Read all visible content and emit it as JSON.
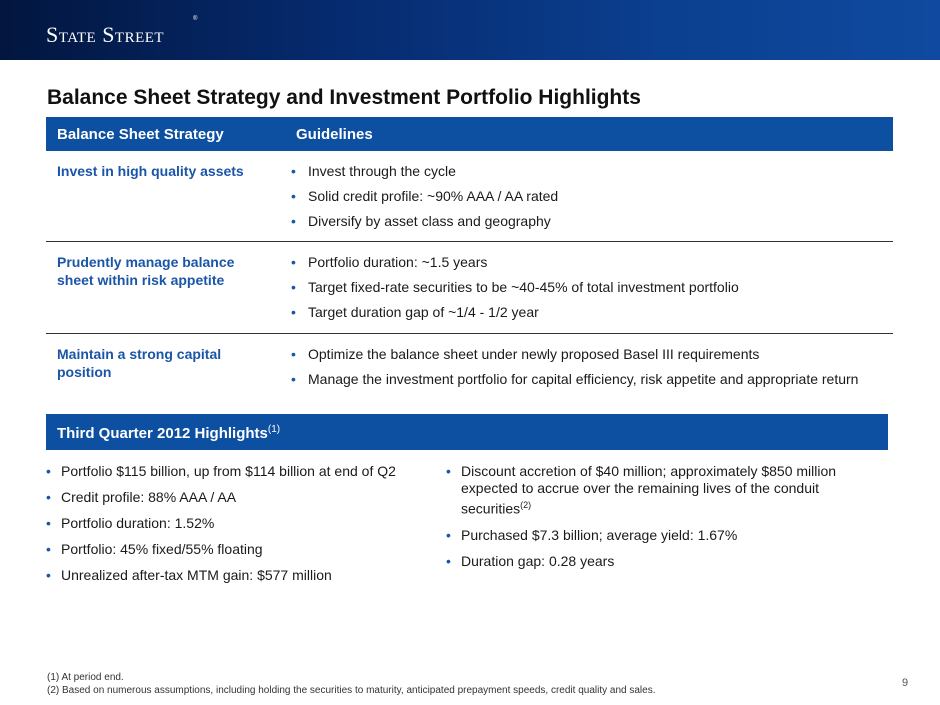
{
  "header": {
    "logo_text": "State Street",
    "logo_mark": "®"
  },
  "page_title": "Balance Sheet Strategy and Investment Portfolio Highlights",
  "table": {
    "columns": [
      "Balance Sheet Strategy",
      "Guidelines"
    ],
    "rows": [
      {
        "strategy": "Invest in high quality assets",
        "guidelines": [
          "Invest through the cycle",
          "Solid credit profile: ~90% AAA / AA rated",
          "Diversify by asset class and geography"
        ]
      },
      {
        "strategy": "Prudently manage balance sheet within risk appetite",
        "guidelines": [
          "Portfolio duration: ~1.5 years",
          "Target fixed-rate securities to be ~40-45% of total investment portfolio",
          "Target duration gap of ~1/4 - 1/2 year"
        ]
      },
      {
        "strategy": "Maintain a strong capital position",
        "guidelines": [
          "Optimize the balance sheet under newly proposed Basel III requirements",
          "Manage the investment portfolio for capital efficiency, risk appetite and appropriate return"
        ]
      }
    ]
  },
  "highlights": {
    "title": "Third Quarter 2012 Highlights",
    "title_note": "(1)",
    "left": [
      "Portfolio $115 billion, up from $114 billion at end of Q2",
      "Credit profile: 88% AAA / AA",
      "Portfolio duration: 1.52%",
      "Portfolio: 45% fixed/55% floating",
      "Unrealized after-tax MTM gain: $577 million"
    ],
    "right": {
      "item1_text": "Discount accretion of $40 million; approximately $850 million expected to accrue over the remaining lives of the conduit securities",
      "item1_note": "(2)",
      "item2": "Purchased $7.3 billion; average yield: 1.67%",
      "item3": "Duration gap: 0.28 years"
    }
  },
  "footnotes": [
    "(1)  At period end.",
    "(2)  Based on numerous assumptions, including holding the securities to maturity, anticipated prepayment speeds, credit quality and sales."
  ],
  "page_number": "9"
}
